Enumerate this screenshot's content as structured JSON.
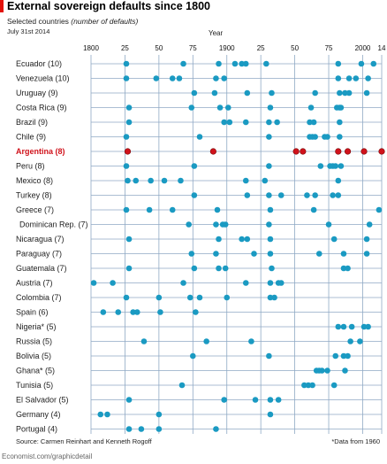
{
  "header": {
    "title": "External sovereign defaults since 1800",
    "subtitle_main": "Selected countries ",
    "subtitle_italic": "(number of defaults)",
    "date": "July 31st 2014"
  },
  "footer": {
    "source": "Source: Carmen Reinhart and Kenneth Rogoff",
    "note": "*Data from 1960",
    "credit": "Economist.com/graphicdetail"
  },
  "colors": {
    "accent_red": "#e3120b",
    "dot_blue": "#1a9ac2",
    "dot_red": "#d0121b",
    "grid": "#8fa9c4"
  },
  "chart_data": {
    "type": "scatter",
    "title": "External sovereign defaults since 1800",
    "subtitle": "Selected countries (number of defaults)",
    "xlabel": "Year",
    "xlim": [
      1800,
      2014
    ],
    "ticks": [
      {
        "value": 1800,
        "label": "1800"
      },
      {
        "value": 1825,
        "label": "25"
      },
      {
        "value": 1850,
        "label": "50"
      },
      {
        "value": 1875,
        "label": "75"
      },
      {
        "value": 1900,
        "label": "1900"
      },
      {
        "value": 1925,
        "label": "25"
      },
      {
        "value": 1950,
        "label": "50"
      },
      {
        "value": 1975,
        "label": "75"
      },
      {
        "value": 2000,
        "label": "2000"
      },
      {
        "value": 2014,
        "label": "14"
      }
    ],
    "grid": true,
    "series": [
      {
        "country": "Ecuador (10)",
        "years": [
          1826,
          1868,
          1894,
          1906,
          1911,
          1914,
          1929,
          1982,
          1999,
          2008
        ]
      },
      {
        "country": "Venezuela (10)",
        "years": [
          1826,
          1848,
          1860,
          1865,
          1892,
          1898,
          1982,
          1990,
          1995,
          2004
        ]
      },
      {
        "country": "Uruguay (9)",
        "years": [
          1876,
          1891,
          1915,
          1933,
          1965,
          1983,
          1987,
          1990,
          2003
        ]
      },
      {
        "country": "Costa Rica (9)",
        "years": [
          1828,
          1874,
          1895,
          1901,
          1932,
          1962,
          1981,
          1983,
          1984
        ]
      },
      {
        "country": "Brazil (9)",
        "years": [
          1828,
          1898,
          1902,
          1914,
          1931,
          1937,
          1961,
          1964,
          1983
        ]
      },
      {
        "country": "Chile (9)",
        "years": [
          1826,
          1880,
          1931,
          1961,
          1963,
          1965,
          1972,
          1974,
          1983
        ]
      },
      {
        "country": "Argentina (8)",
        "years": [
          1827,
          1890,
          1951,
          1956,
          1982,
          1989,
          2001,
          2014
        ],
        "highlight": true
      },
      {
        "country": "Peru (8)",
        "years": [
          1826,
          1876,
          1931,
          1969,
          1976,
          1978,
          1980,
          1984
        ]
      },
      {
        "country": "Mexico (8)",
        "years": [
          1827,
          1833,
          1844,
          1854,
          1866,
          1914,
          1928,
          1982
        ]
      },
      {
        "country": "Turkey (8)",
        "years": [
          1876,
          1915,
          1931,
          1940,
          1959,
          1965,
          1978,
          1982
        ]
      },
      {
        "country": "Greece (7)",
        "years": [
          1826,
          1843,
          1860,
          1893,
          1932,
          1964,
          2012
        ]
      },
      {
        "country": "Dominican Rep. (7)",
        "years": [
          1872,
          1892,
          1897,
          1899,
          1931,
          1975,
          2005
        ]
      },
      {
        "country": "Nicaragua (7)",
        "years": [
          1828,
          1894,
          1911,
          1915,
          1932,
          1979,
          2003
        ]
      },
      {
        "country": "Paraguay (7)",
        "years": [
          1874,
          1892,
          1920,
          1932,
          1968,
          1986,
          2003
        ]
      },
      {
        "country": "Guatemala (7)",
        "years": [
          1828,
          1876,
          1894,
          1899,
          1933,
          1986,
          1989
        ]
      },
      {
        "country": "Austria (7)",
        "years": [
          1802,
          1816,
          1868,
          1914,
          1932,
          1938,
          1940
        ]
      },
      {
        "country": "Colombia (7)",
        "years": [
          1826,
          1850,
          1873,
          1880,
          1900,
          1932,
          1935
        ]
      },
      {
        "country": "Spain (6)",
        "years": [
          1809,
          1820,
          1831,
          1834,
          1851,
          1877
        ]
      },
      {
        "country": "Nigeria* (5)",
        "years": [
          1982,
          1986,
          1992,
          2001,
          2004
        ]
      },
      {
        "country": "Russia (5)",
        "years": [
          1839,
          1885,
          1918,
          1991,
          1998
        ]
      },
      {
        "country": "Bolivia (5)",
        "years": [
          1875,
          1931,
          1980,
          1986,
          1989
        ]
      },
      {
        "country": "Ghana* (5)",
        "years": [
          1966,
          1968,
          1970,
          1974,
          1987
        ]
      },
      {
        "country": "Tunisia (5)",
        "years": [
          1867,
          1957,
          1960,
          1963,
          1979
        ]
      },
      {
        "country": "El Salvador (5)",
        "years": [
          1828,
          1898,
          1921,
          1932,
          1938
        ]
      },
      {
        "country": "Germany (4)",
        "years": [
          1807,
          1812,
          1850,
          1932
        ]
      },
      {
        "country": "Portugal (4)",
        "years": [
          1828,
          1837,
          1850,
          1892
        ]
      }
    ]
  }
}
